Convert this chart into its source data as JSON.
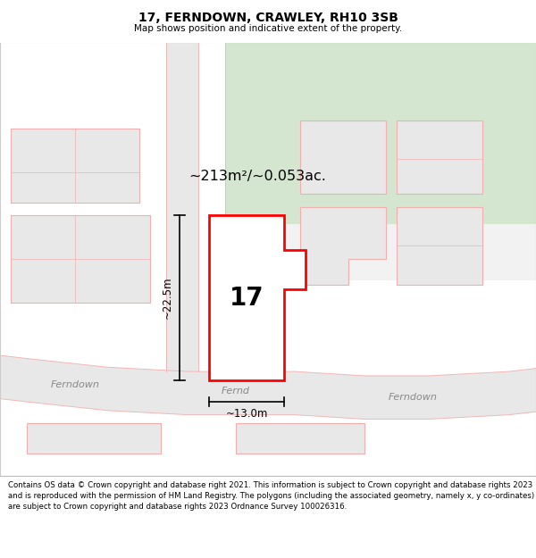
{
  "title": "17, FERNDOWN, CRAWLEY, RH10 3SB",
  "subtitle": "Map shows position and indicative extent of the property.",
  "footer": "Contains OS data © Crown copyright and database right 2021. This information is subject to Crown copyright and database rights 2023 and is reproduced with the permission of HM Land Registry. The polygons (including the associated geometry, namely x, y co-ordinates) are subject to Crown copyright and database rights 2023 Ordnance Survey 100026316.",
  "area_label": "~213m²/~0.053ac.",
  "width_label": "~13.0m",
  "height_label": "~22.5m",
  "property_number": "17",
  "background_color": "#ffffff",
  "map_bg": "#f2f2f2",
  "road_fill": "#e8e8e8",
  "road_stroke": "#f0b8b8",
  "green_area_color": "#d4e6d0",
  "property_fill": "#ffffff",
  "property_stroke": "#ff0000",
  "neighbor_fill": "#e8e8e8",
  "neighbor_stroke": "#f0b0b0"
}
